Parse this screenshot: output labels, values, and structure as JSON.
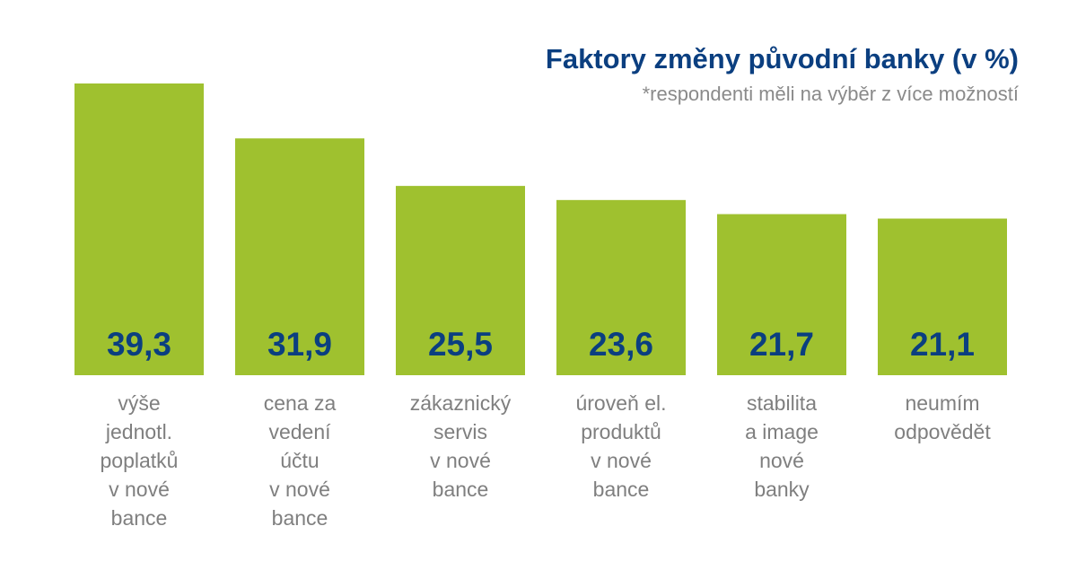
{
  "colors": {
    "bar": "#9fc12f",
    "title": "#0b3f80",
    "subtitle": "#8a8a8a",
    "value_label": "#0b3f80",
    "category_label": "#7f7f7f",
    "background": "#ffffff"
  },
  "chart_data": {
    "type": "bar",
    "title": "Faktory změny původní banky (v %)",
    "subtitle": "*respondenti měli na výběr z více možností",
    "xlabel": "",
    "ylabel": "",
    "ylim": [
      0,
      39.3
    ],
    "grid": false,
    "legend": "none",
    "categories": [
      [
        "výše",
        "jednotl.",
        "poplatků",
        "v nové",
        "bance"
      ],
      [
        "cena za",
        "vedení",
        "účtu",
        "v nové",
        "bance"
      ],
      [
        "zákaznický",
        "servis",
        "v nové",
        "bance"
      ],
      [
        "úroveň el.",
        "produktů",
        "v nové",
        "bance"
      ],
      [
        "stabilita",
        "a image",
        "nové",
        "banky"
      ],
      [
        "neumím",
        "odpovědět"
      ]
    ],
    "values": [
      39.3,
      31.9,
      25.5,
      23.6,
      21.7,
      21.1
    ],
    "value_labels": [
      "39,3",
      "31,9",
      "25,5",
      "23,6",
      "21,7",
      "21,1"
    ]
  }
}
